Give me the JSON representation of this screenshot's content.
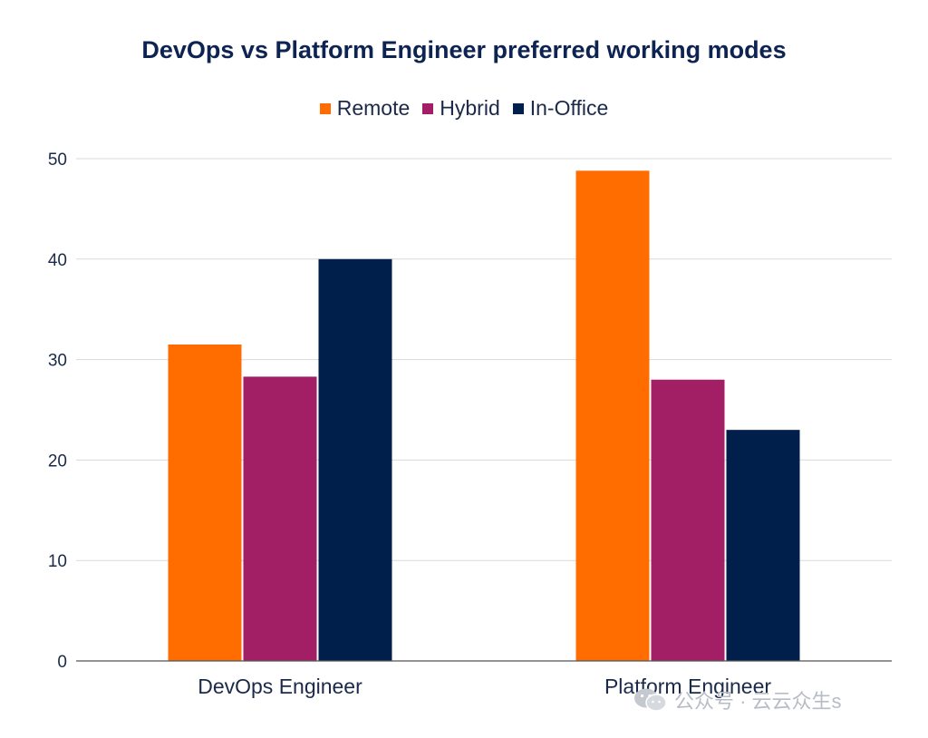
{
  "chart_data": {
    "type": "bar",
    "title": "DevOps vs Platform Engineer preferred working modes",
    "categories": [
      "DevOps Engineer",
      "Platform Engineer"
    ],
    "series": [
      {
        "name": "Remote",
        "color": "#ff6d00",
        "values": [
          31.5,
          48.8
        ]
      },
      {
        "name": "Hybrid",
        "color": "#a21f66",
        "values": [
          28.3,
          28.0
        ]
      },
      {
        "name": "In-Office",
        "color": "#011f4b",
        "values": [
          40.0,
          23.0
        ]
      }
    ],
    "xlabel": "",
    "ylabel": "",
    "ylim": [
      0,
      50
    ],
    "yticks": [
      0,
      10,
      20,
      30,
      40,
      50
    ],
    "grid": true,
    "legend_position": "top-center"
  },
  "watermark": {
    "text": "公众号 · 云云众生s",
    "icon": "wechat-icon"
  }
}
